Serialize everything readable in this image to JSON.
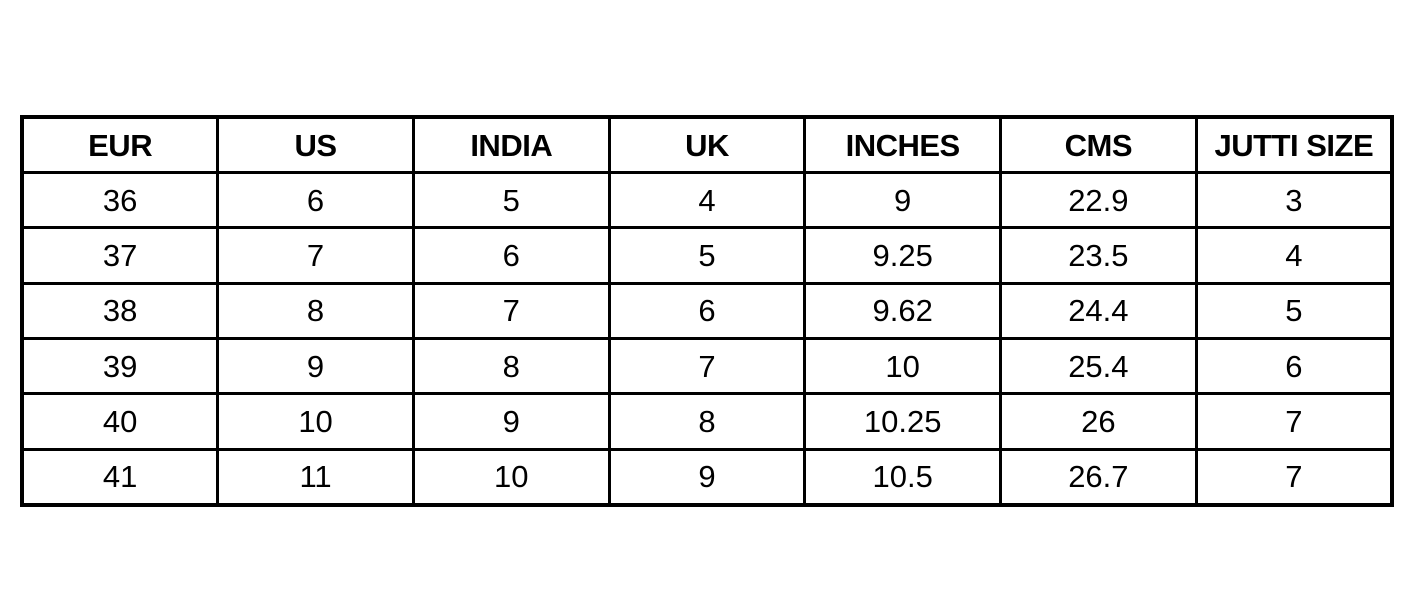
{
  "size_chart": {
    "headers": [
      "EUR",
      "US",
      "INDIA",
      "UK",
      "INCHES",
      "CMS",
      "JUTTI SIZE"
    ],
    "rows": [
      [
        "36",
        "6",
        "5",
        "4",
        "9",
        "22.9",
        "3"
      ],
      [
        "37",
        "7",
        "6",
        "5",
        "9.25",
        "23.5",
        "4"
      ],
      [
        "38",
        "8",
        "7",
        "6",
        "9.62",
        "24.4",
        "5"
      ],
      [
        "39",
        "9",
        "8",
        "7",
        "10",
        "25.4",
        "6"
      ],
      [
        "40",
        "10",
        "9",
        "8",
        "10.25",
        "26",
        "7"
      ],
      [
        "41",
        "11",
        "10",
        "9",
        "10.5",
        "26.7",
        "7"
      ]
    ]
  }
}
